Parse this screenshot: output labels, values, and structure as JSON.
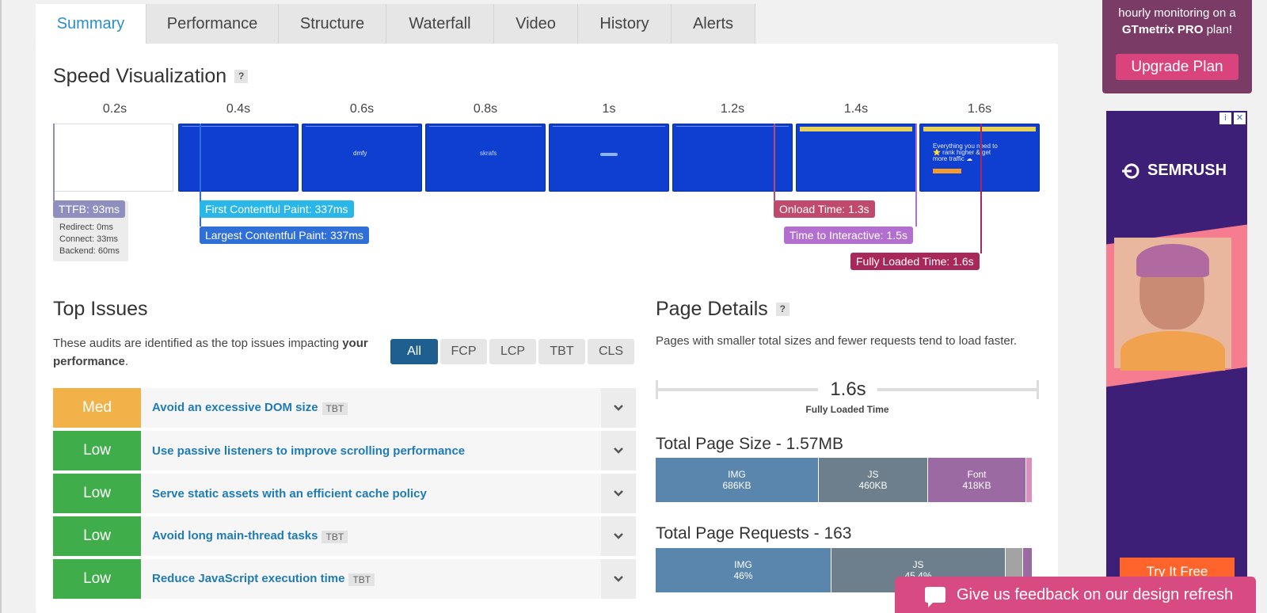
{
  "tabs": [
    {
      "label": "Summary",
      "active": true
    },
    {
      "label": "Performance"
    },
    {
      "label": "Structure"
    },
    {
      "label": "Waterfall"
    },
    {
      "label": "Video"
    },
    {
      "label": "History"
    },
    {
      "label": "Alerts"
    }
  ],
  "speed_visualization": {
    "title": "Speed Visualization",
    "help": "?",
    "time_labels": [
      "0.2s",
      "0.4s",
      "0.6s",
      "0.8s",
      "1s",
      "1.2s",
      "1.4s",
      "1.6s"
    ],
    "frame_texts": {
      "f3": "dmfy",
      "f4": "skrafs",
      "f8": "Everything you need to ⭐ rank higher & get more traffic ☁"
    },
    "ttfb": "TTFB: 93ms",
    "redirect": "Redirect: 0ms",
    "connect": "Connect: 33ms",
    "backend": "Backend: 60ms",
    "fcp": "First Contentful Paint: 337ms",
    "lcp": "Largest Contentful Paint: 337ms",
    "onload": "Onload Time: 1.3s",
    "tti": "Time to Interactive: 1.5s",
    "fully_loaded": "Fully Loaded Time: 1.6s",
    "colors": {
      "ttfb": "#8f8fbf",
      "fcp": "#29b6e8",
      "lcp": "#2f6fd6",
      "onload": "#c04a6e",
      "tti": "#b36fcf",
      "fully": "#a8285a"
    }
  },
  "top_issues": {
    "title": "Top Issues",
    "desc_prefix": "These audits are identified as the top issues impacting ",
    "desc_bold": "your performance",
    "desc_suffix": ".",
    "filters": [
      "All",
      "FCP",
      "LCP",
      "TBT",
      "CLS"
    ],
    "active_filter": "All",
    "items": [
      {
        "severity": "Med",
        "title": "Avoid an excessive DOM size",
        "tag": "TBT"
      },
      {
        "severity": "Low",
        "title": "Use passive listeners to improve scrolling performance",
        "tag": ""
      },
      {
        "severity": "Low",
        "title": "Serve static assets with an efficient cache policy",
        "tag": ""
      },
      {
        "severity": "Low",
        "title": "Avoid long main-thread tasks",
        "tag": "TBT"
      },
      {
        "severity": "Low",
        "title": "Reduce JavaScript execution time",
        "tag": "TBT"
      }
    ]
  },
  "page_details": {
    "title": "Page Details",
    "help": "?",
    "desc": "Pages with smaller total sizes and fewer requests tend to load faster.",
    "fully_loaded_value": "1.6s",
    "fully_loaded_label": "Fully Loaded Time",
    "size_title": "Total Page Size - 1.57MB",
    "size_segments": [
      {
        "label": "IMG",
        "value": "686KB",
        "color": "#5a86ad"
      },
      {
        "label": "JS",
        "value": "460KB",
        "color": "#6d7f8d"
      },
      {
        "label": "Font",
        "value": "418KB",
        "color": "#9b6aa3"
      }
    ],
    "requests_title": "Total Page Requests - 163",
    "request_segments": [
      {
        "label": "IMG",
        "value": "46%",
        "color": "#5a86ad"
      },
      {
        "label": "JS",
        "value": "45.4%",
        "color": "#6d7f8d"
      }
    ]
  },
  "upsell": {
    "line1": "hourly monitoring on a",
    "brand": "GTmetrix PRO",
    "line2_suffix": " plan!",
    "button": "Upgrade Plan"
  },
  "ad": {
    "info": "i",
    "close": "✕",
    "brand": "SEMRUSH",
    "cta": "Try It Free"
  },
  "feedback": {
    "label": "Give us feedback on our design refresh"
  }
}
